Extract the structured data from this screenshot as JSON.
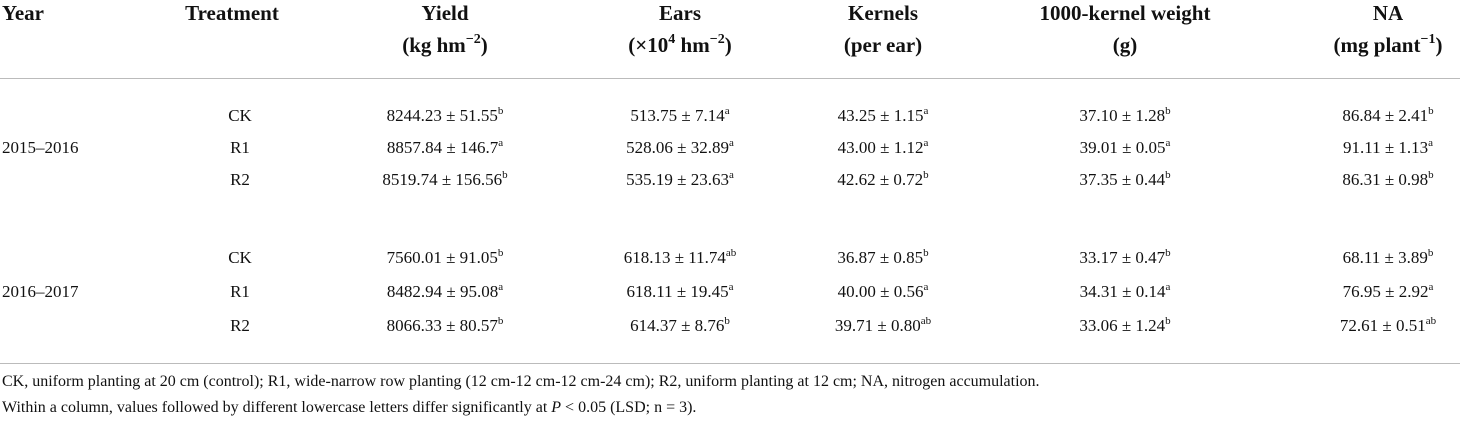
{
  "table": {
    "header": [
      {
        "title": [
          {
            "t": "Year"
          }
        ],
        "unit": []
      },
      {
        "title": [
          {
            "t": "Treatment"
          }
        ],
        "unit": []
      },
      {
        "title": [
          {
            "t": "Yield"
          }
        ],
        "unit": [
          {
            "t": "(kg hm"
          },
          {
            "sup": "−2"
          },
          {
            "t": ")"
          }
        ]
      },
      {
        "title": [
          {
            "t": "Ears"
          }
        ],
        "unit": [
          {
            "t": "(×10"
          },
          {
            "sup": "4"
          },
          {
            "t": " hm"
          },
          {
            "sup": "−2"
          },
          {
            "t": ")"
          }
        ]
      },
      {
        "title": [
          {
            "t": "Kernels"
          }
        ],
        "unit": [
          {
            "t": "(per ear)"
          }
        ]
      },
      {
        "title": [
          {
            "t": "1000-kernel weight"
          }
        ],
        "unit": [
          {
            "t": "(g)"
          }
        ]
      },
      {
        "title": [
          {
            "t": "NA"
          }
        ],
        "unit": [
          {
            "t": "(mg plant"
          },
          {
            "sup": "−1"
          },
          {
            "t": ")"
          }
        ]
      }
    ],
    "groups": [
      {
        "year": "2015–2016",
        "rows": [
          {
            "treatment": "CK",
            "cells": [
              {
                "v": "8244.23 ± 51.55",
                "sup": "b"
              },
              {
                "v": "513.75 ± 7.14",
                "sup": "a"
              },
              {
                "v": "43.25 ± 1.15",
                "sup": "a"
              },
              {
                "v": "37.10 ± 1.28",
                "sup": "b"
              },
              {
                "v": "86.84 ± 2.41",
                "sup": "b"
              }
            ]
          },
          {
            "treatment": "R1",
            "cells": [
              {
                "v": "8857.84 ± 146.7",
                "sup": "a"
              },
              {
                "v": "528.06 ± 32.89",
                "sup": "a"
              },
              {
                "v": "43.00 ± 1.12",
                "sup": "a"
              },
              {
                "v": "39.01 ± 0.05",
                "sup": "a"
              },
              {
                "v": "91.11 ± 1.13",
                "sup": "a"
              }
            ]
          },
          {
            "treatment": "R2",
            "cells": [
              {
                "v": "8519.74 ± 156.56",
                "sup": "b"
              },
              {
                "v": "535.19 ± 23.63",
                "sup": "a"
              },
              {
                "v": "42.62 ± 0.72",
                "sup": "b"
              },
              {
                "v": "37.35 ± 0.44",
                "sup": "b"
              },
              {
                "v": "86.31 ± 0.98",
                "sup": "b"
              }
            ]
          }
        ]
      },
      {
        "year": "2016–2017",
        "rows": [
          {
            "treatment": "CK",
            "cells": [
              {
                "v": "7560.01 ± 91.05",
                "sup": "b"
              },
              {
                "v": "618.13 ± 11.74",
                "sup": "ab"
              },
              {
                "v": "36.87 ± 0.85",
                "sup": "b"
              },
              {
                "v": "33.17 ± 0.47",
                "sup": "b"
              },
              {
                "v": "68.11 ± 3.89",
                "sup": "b"
              }
            ]
          },
          {
            "treatment": "R1",
            "cells": [
              {
                "v": "8482.94 ± 95.08",
                "sup": "a"
              },
              {
                "v": "618.11 ± 19.45",
                "sup": "a"
              },
              {
                "v": "40.00 ± 0.56",
                "sup": "a"
              },
              {
                "v": "34.31 ± 0.14",
                "sup": "a"
              },
              {
                "v": "76.95 ± 2.92",
                "sup": "a"
              }
            ]
          },
          {
            "treatment": "R2",
            "cells": [
              {
                "v": "8066.33 ± 80.57",
                "sup": "b"
              },
              {
                "v": "614.37 ± 8.76",
                "sup": "b"
              },
              {
                "v": "39.71 ± 0.80",
                "sup": "ab"
              },
              {
                "v": "33.06 ± 1.24",
                "sup": "b"
              },
              {
                "v": "72.61 ± 0.51",
                "sup": "ab"
              }
            ]
          }
        ]
      }
    ],
    "footnotes": [
      [
        {
          "t": "CK, uniform planting at 20 cm (control); R1, wide-narrow row planting (12 cm-12 cm-12 cm-24 cm); R2, uniform planting at 12 cm; NA, nitrogen accumulation."
        }
      ],
      [
        {
          "t": "Within a column, values followed by different lowercase letters differ significantly at "
        },
        {
          "i": "P"
        },
        {
          "t": " < 0.05 (LSD; n = 3)."
        }
      ]
    ]
  }
}
